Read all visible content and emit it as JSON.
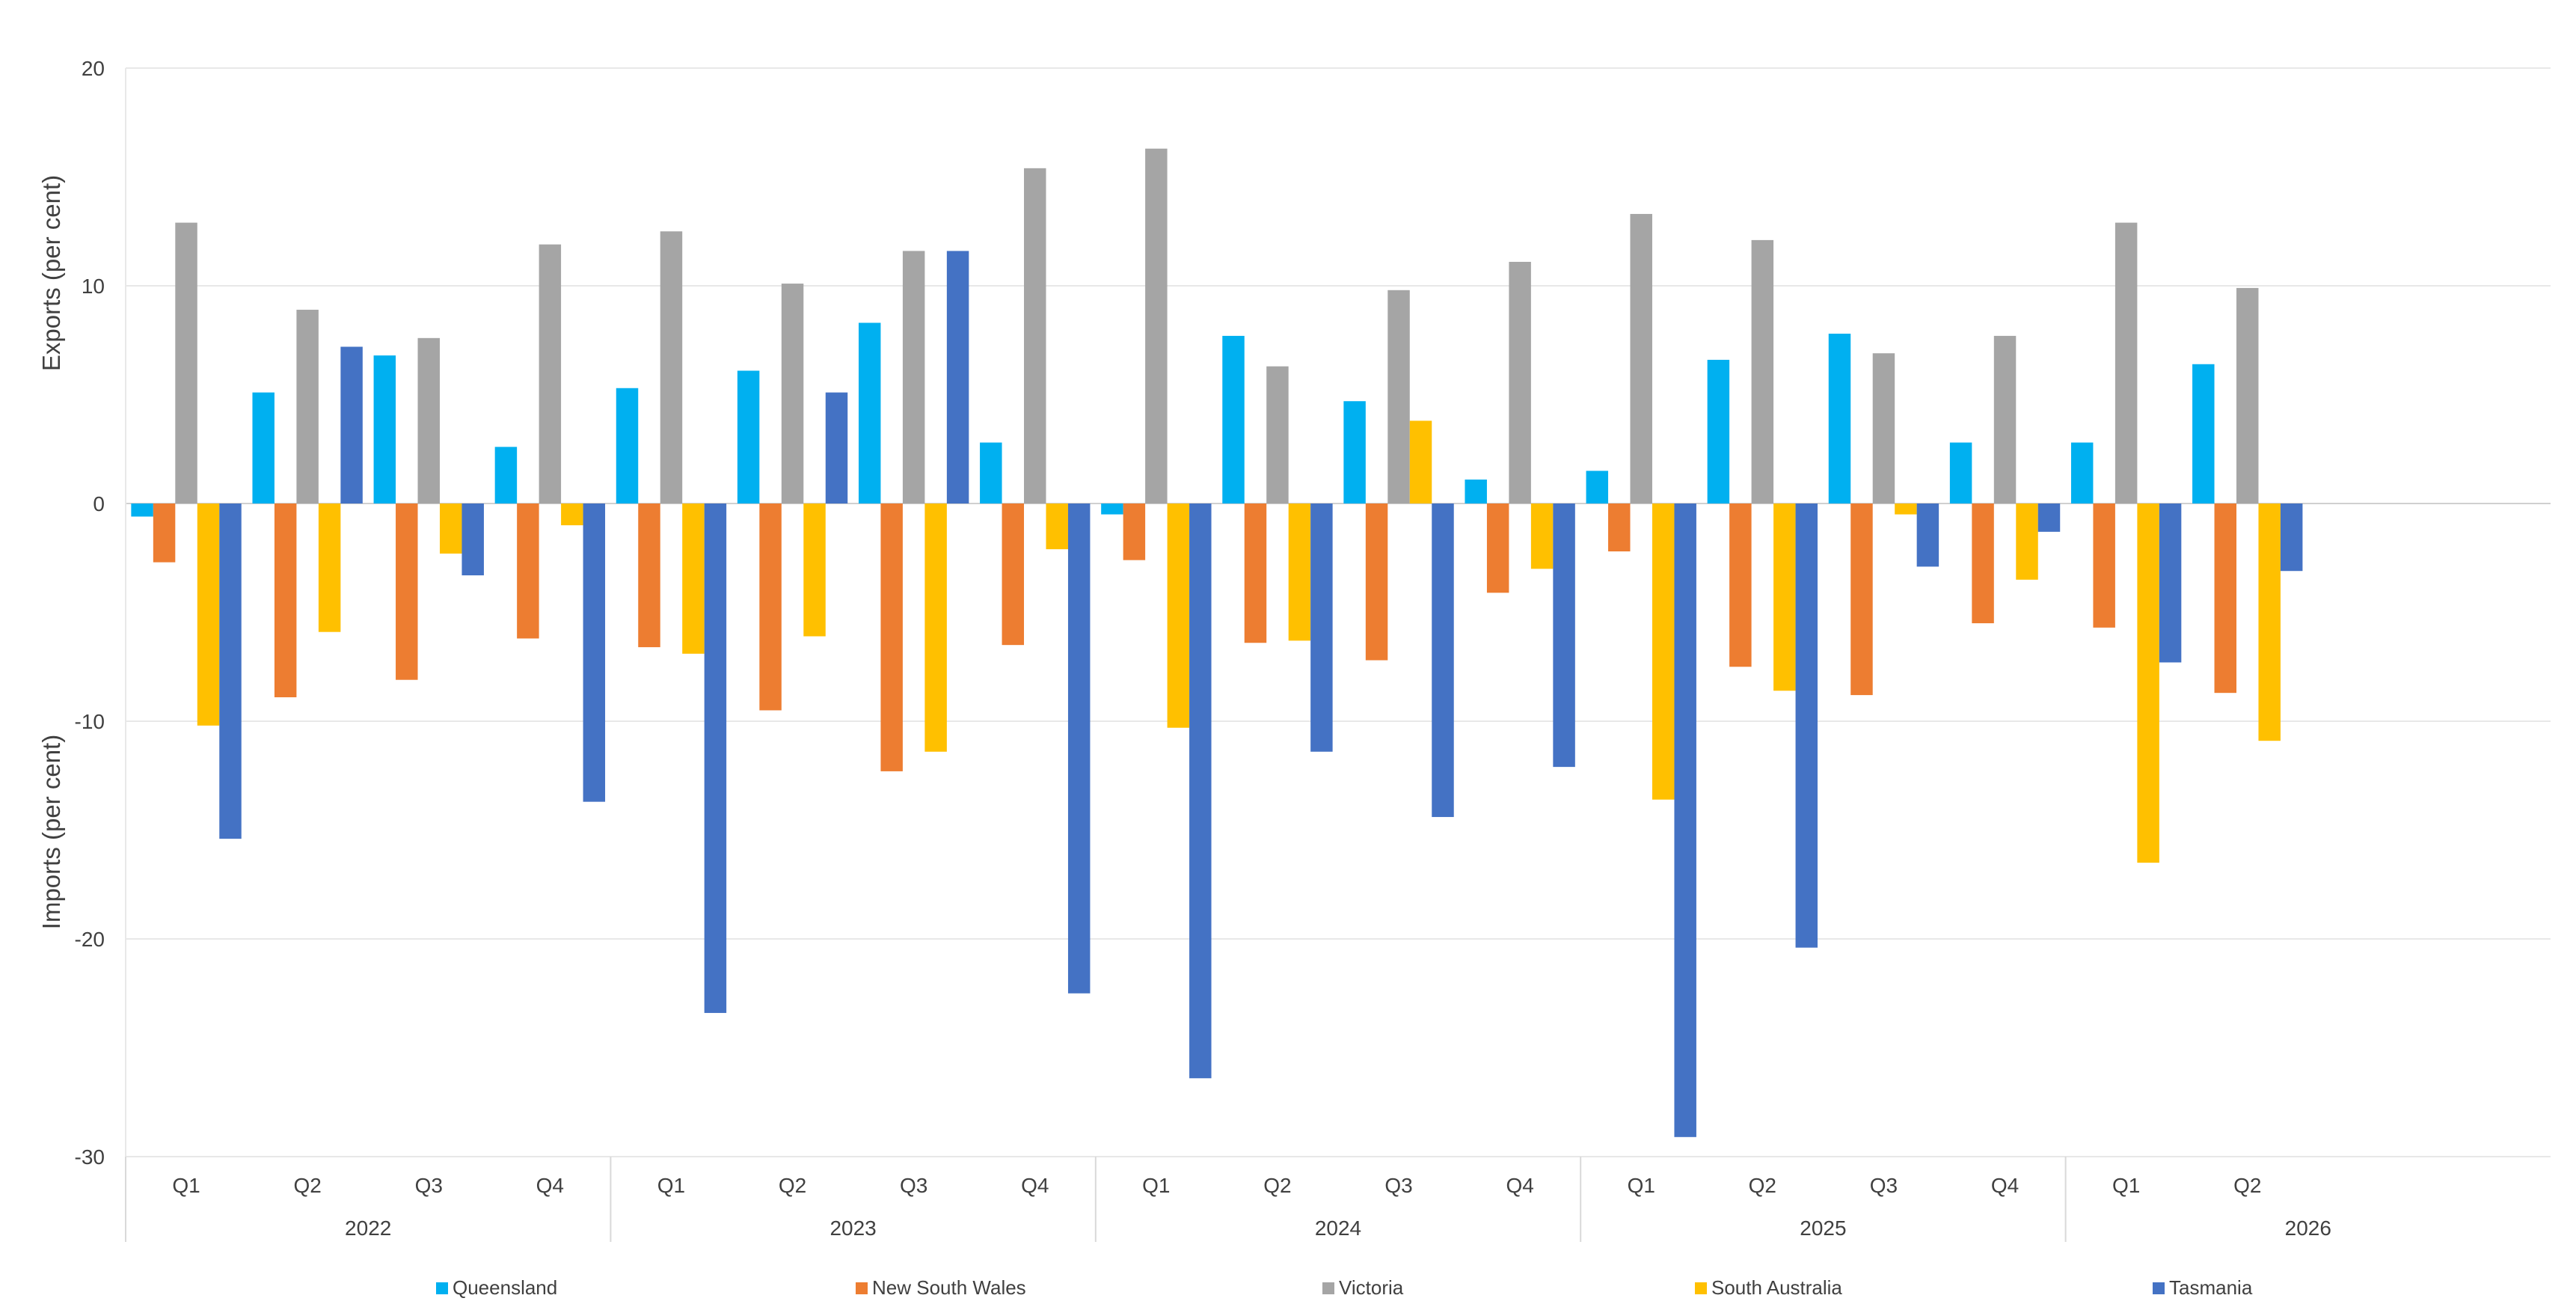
{
  "chart_data": {
    "type": "bar",
    "ylabel_top": "Exports (per cent)",
    "ylabel_bottom": "Imports (per cent)",
    "ylim": [
      -30,
      20
    ],
    "yticks": [
      -30,
      -20,
      -10,
      0,
      10,
      20
    ],
    "grid": true,
    "legend_position": "bottom",
    "categories": [
      {
        "quarter": "Q1",
        "year": "2022"
      },
      {
        "quarter": "Q2",
        "year": "2022"
      },
      {
        "quarter": "Q3",
        "year": "2022"
      },
      {
        "quarter": "Q4",
        "year": "2022"
      },
      {
        "quarter": "Q1",
        "year": "2023"
      },
      {
        "quarter": "Q2",
        "year": "2023"
      },
      {
        "quarter": "Q3",
        "year": "2023"
      },
      {
        "quarter": "Q4",
        "year": "2023"
      },
      {
        "quarter": "Q1",
        "year": "2024"
      },
      {
        "quarter": "Q2",
        "year": "2024"
      },
      {
        "quarter": "Q3",
        "year": "2024"
      },
      {
        "quarter": "Q4",
        "year": "2024"
      },
      {
        "quarter": "Q1",
        "year": "2025"
      },
      {
        "quarter": "Q2",
        "year": "2025"
      },
      {
        "quarter": "Q3",
        "year": "2025"
      },
      {
        "quarter": "Q4",
        "year": "2025"
      },
      {
        "quarter": "Q1",
        "year": "2026"
      },
      {
        "quarter": "Q2",
        "year": "2026"
      }
    ],
    "years": [
      "2022",
      "2023",
      "2024",
      "2025",
      "2026"
    ],
    "series": [
      {
        "name": "Queensland",
        "color": "#00b0f0",
        "values": [
          -0.6,
          5.1,
          6.8,
          2.6,
          5.3,
          6.1,
          8.3,
          2.8,
          -0.5,
          7.7,
          4.7,
          1.1,
          1.5,
          6.6,
          7.8,
          2.8,
          2.8,
          6.4
        ]
      },
      {
        "name": "New South Wales",
        "color": "#ed7d31",
        "values": [
          -2.7,
          -8.9,
          -8.1,
          -6.2,
          -6.6,
          -9.5,
          -12.3,
          -6.5,
          -2.6,
          -6.4,
          -7.2,
          -4.1,
          -2.2,
          -7.5,
          -8.8,
          -5.5,
          -5.7,
          -8.7
        ]
      },
      {
        "name": "Victoria",
        "color": "#a5a5a5",
        "values": [
          12.9,
          8.9,
          7.6,
          11.9,
          12.5,
          10.1,
          11.6,
          15.4,
          16.3,
          6.3,
          9.8,
          11.1,
          13.3,
          12.1,
          6.9,
          7.7,
          12.9,
          9.9
        ]
      },
      {
        "name": "South Australia",
        "color": "#ffc000",
        "values": [
          -10.2,
          -5.9,
          -2.3,
          -1.0,
          -6.9,
          -6.1,
          -11.4,
          -2.1,
          -10.3,
          -6.3,
          3.8,
          -3.0,
          -13.6,
          -8.6,
          -0.5,
          -3.5,
          -16.5,
          -10.9
        ]
      },
      {
        "name": "Tasmania",
        "color": "#4472c4",
        "values": [
          -15.4,
          7.2,
          -3.3,
          -13.7,
          -23.4,
          5.1,
          11.6,
          -22.5,
          -26.4,
          -11.4,
          -14.4,
          -12.1,
          -29.1,
          -20.4,
          -2.9,
          -1.3,
          -7.3,
          -3.1
        ]
      }
    ]
  }
}
